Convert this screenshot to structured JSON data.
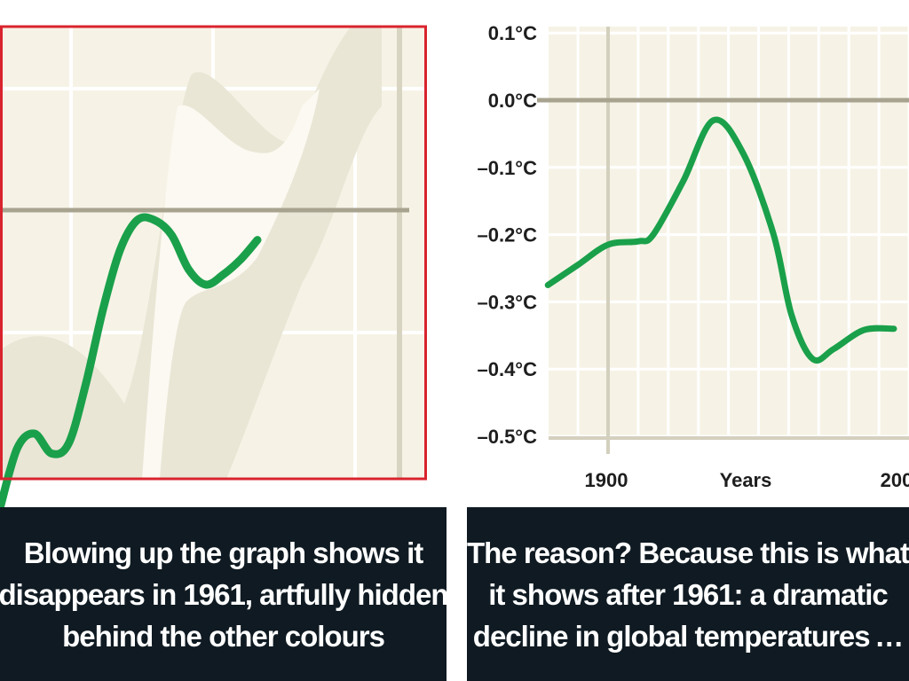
{
  "chart_data": [
    {
      "type": "line",
      "panel": "left",
      "title": "",
      "series": [
        {
          "color": "#1aa04a",
          "x": [
            0,
            1,
            2,
            3,
            4,
            5,
            6,
            7,
            8,
            9,
            10,
            11,
            12,
            13,
            14,
            15
          ],
          "values": [
            -0.6,
            -0.48,
            -0.45,
            -0.49,
            -0.47,
            -0.35,
            -0.2,
            -0.08,
            -0.02,
            -0.02,
            -0.05,
            -0.12,
            -0.15,
            -0.13,
            -0.1,
            -0.06
          ]
        }
      ],
      "reference_line": 0,
      "border_color": "#d9232e",
      "band_color": "#e9e6d6",
      "background": "#f6f3e6",
      "grid": true
    },
    {
      "type": "line",
      "panel": "right",
      "title": "",
      "xlabel": "Years",
      "ylabel": "",
      "yticks": [
        "0.1°C",
        "0.0°C",
        "–0.1°C",
        "–0.2°C",
        "–0.3°C",
        "–0.4°C",
        "–0.5°C"
      ],
      "ytick_values": [
        0.1,
        0.0,
        -0.1,
        -0.2,
        -0.3,
        -0.4,
        -0.5
      ],
      "xticks": [
        "1900",
        "Years",
        "200"
      ],
      "ylim": [
        -0.52,
        0.11
      ],
      "xlim": [
        1880,
        2000
      ],
      "series": [
        {
          "color": "#1aa04a",
          "x": [
            1880,
            1890,
            1900,
            1910,
            1915,
            1925,
            1935,
            1945,
            1955,
            1961,
            1968,
            1975,
            1985,
            1995
          ],
          "values": [
            -0.275,
            -0.245,
            -0.215,
            -0.21,
            -0.2,
            -0.12,
            -0.03,
            -0.08,
            -0.2,
            -0.32,
            -0.385,
            -0.37,
            -0.342,
            -0.34
          ]
        }
      ],
      "reference_line": 0,
      "background": "#f6f3e6",
      "grid": true
    }
  ],
  "captions": {
    "left": [
      "Blowing up the graph shows it",
      "disappears in 1961, artfully hidden",
      "behind the other colours"
    ],
    "right": [
      "The reason? Because this is what",
      "it shows after 1961: a dramatic",
      "decline in global temperatures …"
    ]
  }
}
